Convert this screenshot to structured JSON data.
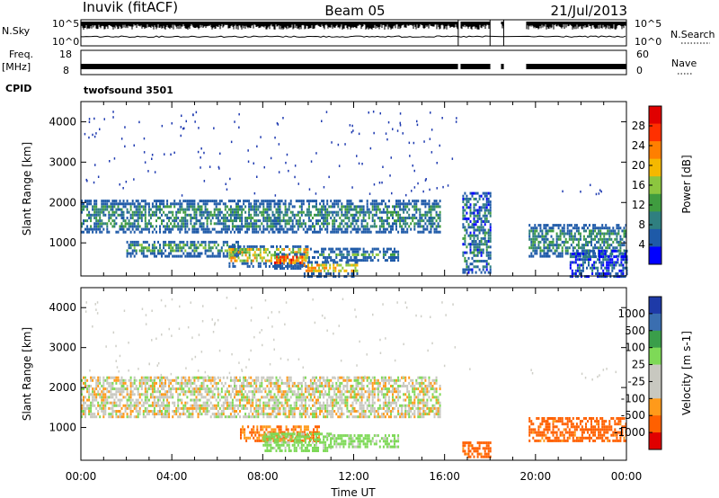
{
  "header": {
    "station": "Inuvik (fitACF)",
    "beam": "Beam 05",
    "date": "21/Jul/2013"
  },
  "top_panels": {
    "nsky_label": "N.Sky",
    "nsky_ticks": [
      "10^5",
      "10^0"
    ],
    "nsearch_label": "N.Search",
    "nsearch_ticks": [
      "10^5",
      "10^0"
    ],
    "freq_label": "Freq.",
    "freq_unit": "[MHz]",
    "freq_ticks": [
      "18",
      "8"
    ],
    "nave_label": "Nave",
    "nave_ticks": [
      "60",
      "0"
    ],
    "cpid_label": "CPID",
    "cpid_value": "twofsound 3501"
  },
  "colors": {
    "power": [
      "#0000ff",
      "#1e5aa8",
      "#2f7f80",
      "#3f9c3f",
      "#8cc63f",
      "#f5b800",
      "#ff7f00",
      "#ff3000",
      "#e00000"
    ],
    "velocity": [
      "#e00000",
      "#ff6000",
      "#ff9a1a",
      "#c8c8c0",
      "#c8c8c0",
      "#7ed957",
      "#3a9e4a",
      "#3a6eb0",
      "#1e3aa8"
    ]
  },
  "chart_data": [
    {
      "type": "heatmap",
      "title": "Power",
      "xlabel": "Time UT",
      "ylabel": "Slant Range [km]",
      "x_ticks": [
        "00:00",
        "04:00",
        "08:00",
        "12:00",
        "16:00",
        "20:00",
        "00:00"
      ],
      "xlim": [
        0,
        24
      ],
      "ylim": [
        180,
        4500
      ],
      "y_ticks": [
        1000,
        2000,
        3000,
        4000
      ],
      "colorbar": {
        "label": "Power [dB]",
        "ticks": [
          4,
          8,
          12,
          16,
          20,
          24,
          28
        ],
        "range": [
          0,
          32
        ]
      },
      "data_gaps_UT": [
        [
          16.6,
          16.7
        ],
        [
          18.0,
          18.5
        ],
        [
          18.6,
          19.6
        ]
      ],
      "echo_regions": [
        {
          "t0": 0.0,
          "t1": 15.8,
          "r0": 1300,
          "r1": 2100,
          "level": 10
        },
        {
          "t0": 2.0,
          "t1": 7.0,
          "r0": 700,
          "r1": 1100,
          "level": 12
        },
        {
          "t0": 6.5,
          "t1": 10.0,
          "r0": 450,
          "r1": 1000,
          "level": 20
        },
        {
          "t0": 8.5,
          "t1": 9.8,
          "r0": 400,
          "r1": 800,
          "level": 28
        },
        {
          "t0": 10.0,
          "t1": 14.0,
          "r0": 600,
          "r1": 900,
          "level": 14
        },
        {
          "t0": 9.8,
          "t1": 12.2,
          "r0": 200,
          "r1": 600,
          "level": 22
        },
        {
          "t0": 16.7,
          "t1": 18.0,
          "r0": 300,
          "r1": 2300,
          "level": 8
        },
        {
          "t0": 19.7,
          "t1": 24.0,
          "r0": 700,
          "r1": 1500,
          "level": 10
        },
        {
          "t0": 21.5,
          "t1": 24.0,
          "r0": 200,
          "r1": 900,
          "level": 6
        }
      ]
    },
    {
      "type": "heatmap",
      "title": "Velocity",
      "xlabel": "Time UT",
      "ylabel": "Slant Range [km]",
      "x_ticks": [
        "00:00",
        "04:00",
        "08:00",
        "12:00",
        "16:00",
        "20:00",
        "00:00"
      ],
      "xlim": [
        0,
        24
      ],
      "ylim": [
        180,
        4500
      ],
      "y_ticks": [
        1000,
        2000,
        3000,
        4000
      ],
      "colorbar": {
        "label": "Velocity [m s-1]",
        "ticks": [
          -1000,
          -500,
          -100,
          -25,
          25,
          100,
          500,
          1000
        ],
        "tick_labels": [
          "1000",
          "500",
          "100",
          "25",
          "-25",
          "-100",
          "-500",
          "-1000"
        ]
      },
      "data_gaps_UT": [
        [
          16.6,
          16.7
        ],
        [
          18.0,
          18.5
        ],
        [
          18.6,
          19.6
        ]
      ],
      "echo_regions": [
        {
          "t0": 0.0,
          "t1": 15.8,
          "r0": 1300,
          "r1": 2300,
          "value": 0
        },
        {
          "t0": 7.0,
          "t1": 10.5,
          "r0": 700,
          "r1": 1100,
          "value": -300
        },
        {
          "t0": 8.0,
          "t1": 11.0,
          "r0": 450,
          "r1": 900,
          "value": 150
        },
        {
          "t0": 10.8,
          "t1": 14.0,
          "r0": 550,
          "r1": 850,
          "value": 120
        },
        {
          "t0": 16.7,
          "t1": 18.0,
          "r0": 300,
          "r1": 700,
          "value": -400
        },
        {
          "t0": 19.7,
          "t1": 24.0,
          "r0": 700,
          "r1": 1300,
          "value": -400
        }
      ]
    }
  ]
}
